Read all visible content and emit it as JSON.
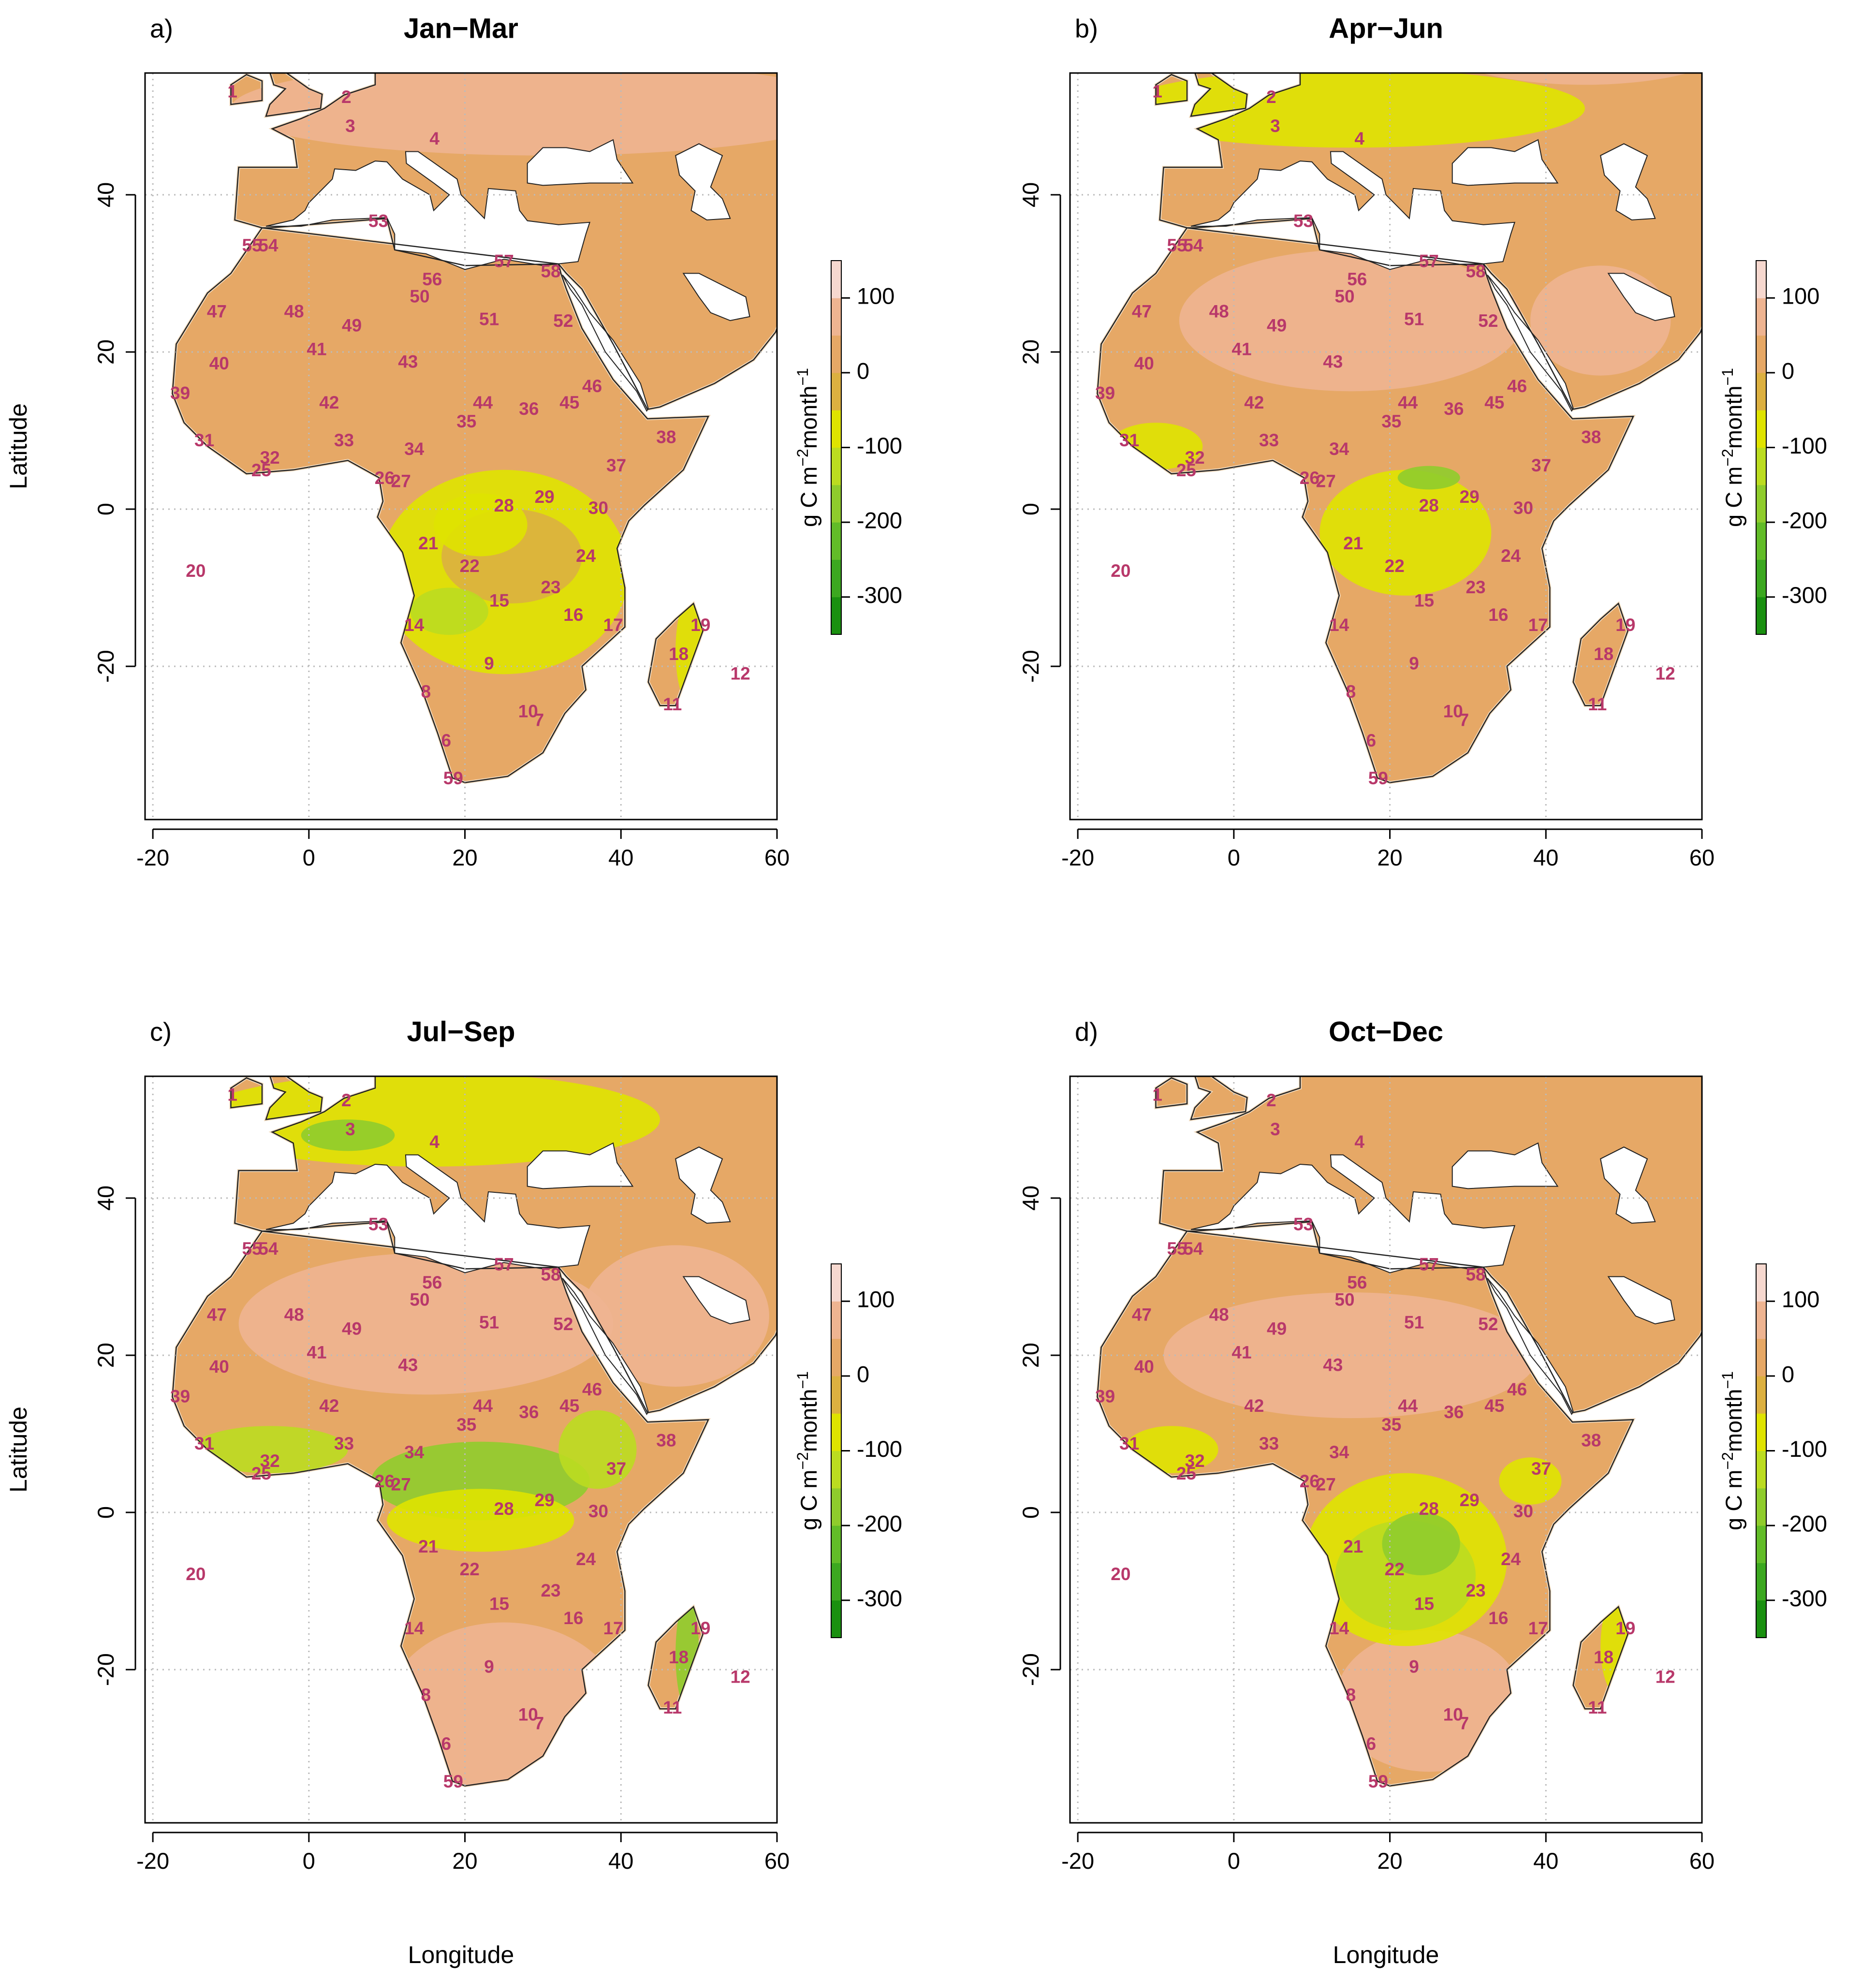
{
  "panels": [
    {
      "letter": "a)",
      "title": "Jan−Mar"
    },
    {
      "letter": "b)",
      "title": "Apr−Jun"
    },
    {
      "letter": "c)",
      "title": "Jul−Sep"
    },
    {
      "letter": "d)",
      "title": "Oct−Dec"
    }
  ],
  "map": {
    "xlim": [
      -21,
      60
    ],
    "ylim": [
      -39.5,
      55.5
    ],
    "xticks": [
      -20,
      0,
      20,
      40,
      60
    ],
    "yticks": [
      -20,
      0,
      20,
      40
    ],
    "xlabel": "Longitude",
    "ylabel": "Latitude",
    "grid": true
  },
  "colorbar": {
    "lim": [
      -350,
      150
    ],
    "ticks": [
      100,
      0,
      -100,
      -200,
      -300
    ],
    "colors": [
      "#1a9010",
      "#3ca820",
      "#62bc28",
      "#8fcc2c",
      "#bbdc20",
      "#dfe300",
      "#dcb040",
      "#e6a866",
      "#eeb491",
      "#f6d8cf"
    ],
    "label_parts": [
      "g C m",
      "−2",
      "month",
      "−1"
    ]
  },
  "regions": [
    "1",
    "2",
    "3",
    "4",
    "53",
    "55",
    "54",
    "57",
    "56",
    "58",
    "50",
    "47",
    "48",
    "49",
    "51",
    "52",
    "41",
    "40",
    "43",
    "39",
    "46",
    "42",
    "44",
    "36",
    "45",
    "35",
    "31",
    "33",
    "38",
    "34",
    "32",
    "25",
    "37",
    "26",
    "27",
    "28",
    "29",
    "30",
    "21",
    "24",
    "20",
    "22",
    "23",
    "15",
    "16",
    "17",
    "14",
    "19",
    "18",
    "12",
    "9",
    "8",
    "11",
    "10",
    "7",
    "6",
    "59"
  ]
}
